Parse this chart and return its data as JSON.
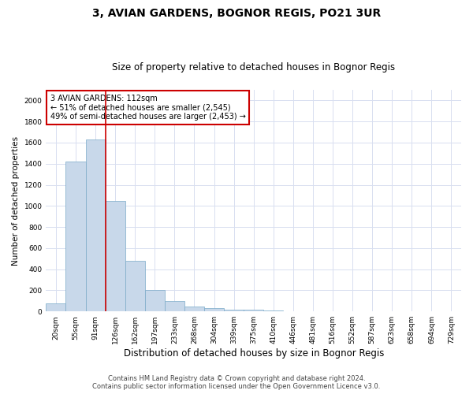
{
  "title": "3, AVIAN GARDENS, BOGNOR REGIS, PO21 3UR",
  "subtitle": "Size of property relative to detached houses in Bognor Regis",
  "xlabel": "Distribution of detached houses by size in Bognor Regis",
  "ylabel": "Number of detached properties",
  "categories": [
    "20sqm",
    "55sqm",
    "91sqm",
    "126sqm",
    "162sqm",
    "197sqm",
    "233sqm",
    "268sqm",
    "304sqm",
    "339sqm",
    "375sqm",
    "410sqm",
    "446sqm",
    "481sqm",
    "516sqm",
    "552sqm",
    "587sqm",
    "623sqm",
    "658sqm",
    "694sqm",
    "729sqm"
  ],
  "values": [
    75,
    1420,
    1630,
    1050,
    480,
    200,
    100,
    45,
    30,
    20,
    20,
    10,
    0,
    0,
    0,
    0,
    0,
    0,
    0,
    0,
    0
  ],
  "bar_color": "#c8d8ea",
  "bar_edge_color": "#7aaac8",
  "vline_x_index": 2.5,
  "vline_color": "#cc0000",
  "annotation_text": "3 AVIAN GARDENS: 112sqm\n← 51% of detached houses are smaller (2,545)\n49% of semi-detached houses are larger (2,453) →",
  "annotation_box_color": "#ffffff",
  "annotation_box_edge_color": "#cc0000",
  "ylim": [
    0,
    2100
  ],
  "yticks": [
    0,
    200,
    400,
    600,
    800,
    1000,
    1200,
    1400,
    1600,
    1800,
    2000
  ],
  "grid_color": "#d8dff0",
  "background_color": "#ffffff",
  "footer_line1": "Contains HM Land Registry data © Crown copyright and database right 2024.",
  "footer_line2": "Contains public sector information licensed under the Open Government Licence v3.0.",
  "title_fontsize": 10,
  "subtitle_fontsize": 8.5,
  "xlabel_fontsize": 8.5,
  "ylabel_fontsize": 7.5,
  "tick_fontsize": 6.5,
  "footer_fontsize": 6,
  "annot_fontsize": 7
}
